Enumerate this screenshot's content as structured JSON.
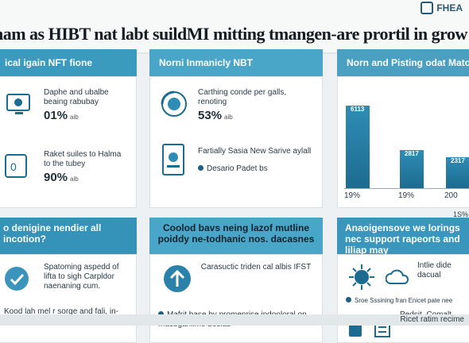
{
  "header": {
    "title": "nam as HIBT nat labt suildMI mitting tmangen-are prortil in grow",
    "logo_text": "FHEA"
  },
  "col1": {
    "heading": "ical igain NFT fione",
    "item1_text": "Daphe and ubalbe beaing rabubay",
    "item1_value": "01%",
    "item1_unit": "aib",
    "item2_text": "Raket suiles to Halma to the tubey",
    "item2_value": "90%",
    "item2_unit": "aib",
    "sub": "o denigine nendier all incotion?",
    "lower1": "Spatoming aspedd of lifta to sigh Carpldor naenaning cum.",
    "lower2": "Kood lah mel r sorge and fali, in-nuld nis"
  },
  "col2": {
    "heading": "Norni Inmanicly NBT",
    "item1_text": "Carthing conde per galls, renoting",
    "item1_value": "53%",
    "item1_unit": "aib",
    "item2_text": "Fartially Sasia New Sarive aylall",
    "item2_note": "Desario Padet bs",
    "sub": "Coolod bavs neing lazof mutline poiddy ne-todhanic nos. dacasnes",
    "lower1": "Carasuctic triden cal albis IFST",
    "lower2": "Mafrit base by promenrise indooloral on macbganiime boslas"
  },
  "col3": {
    "heading": "Norn and Pisting odat Maton",
    "sub": "Anaoigensove we lorings nec support rapeorts and liliap may",
    "lower1": "Intlie dide dacual",
    "lower2": "Sroe Sssining fran Enicet pate nee",
    "lower3": "Pedsit, Comalt"
  },
  "chart_data": {
    "type": "bar",
    "title": "",
    "categories": [
      "19%",
      "19%",
      "200"
    ],
    "values": [
      6113,
      2817,
      2317
    ],
    "value_labels": [
      "6113",
      "2817",
      "2317"
    ],
    "xlabel": "",
    "ylabel": "",
    "footnote": "1S%",
    "colors": [
      "#2f8db5"
    ]
  },
  "footer": {
    "text": "Ricet ratim recime"
  }
}
